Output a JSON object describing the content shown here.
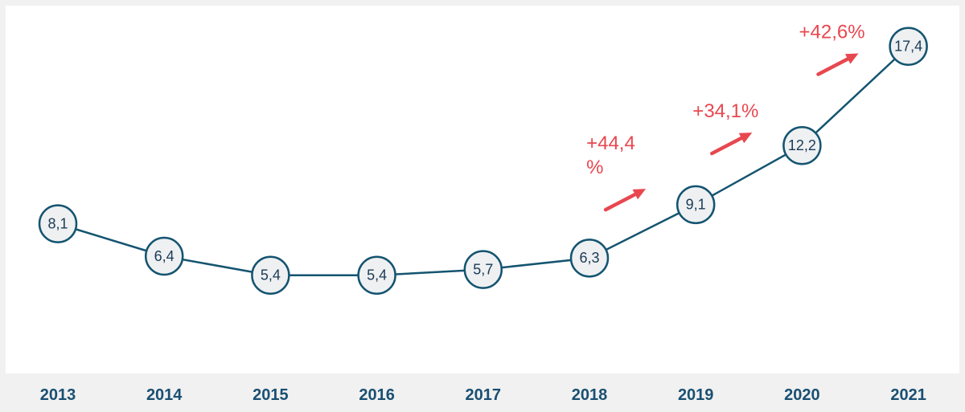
{
  "chart_data": {
    "type": "line",
    "categories": [
      "2013",
      "2014",
      "2015",
      "2016",
      "2017",
      "2018",
      "2019",
      "2020",
      "2021"
    ],
    "values": [
      8.1,
      6.4,
      5.4,
      5.4,
      5.7,
      6.3,
      9.1,
      12.2,
      17.4
    ],
    "data_labels": [
      "8,1",
      "6,4",
      "5,4",
      "5,4",
      "5,7",
      "6,3",
      "9,1",
      "12,2",
      "17,4"
    ],
    "title": "",
    "xlabel": "",
    "ylabel": "",
    "ylim": [
      0,
      20
    ],
    "grid": false,
    "legend": "none",
    "annotations": [
      {
        "text_lines": [
          "+44,4",
          "%"
        ],
        "between": [
          "2018",
          "2019"
        ],
        "type": "growth-arrow"
      },
      {
        "text_lines": [
          "+34,1%"
        ],
        "between": [
          "2019",
          "2020"
        ],
        "type": "growth-arrow"
      },
      {
        "text_lines": [
          "+42,6%"
        ],
        "between": [
          "2020",
          "2021"
        ],
        "type": "growth-arrow"
      }
    ]
  },
  "colors": {
    "line": "#145470",
    "point_fill": "#eef0f2",
    "point_text": "#1a3b55",
    "axis_text": "#1a4f72",
    "annotation": "#e8474f",
    "plot_background": "#ffffff",
    "page_background": "#f1f1f1"
  }
}
